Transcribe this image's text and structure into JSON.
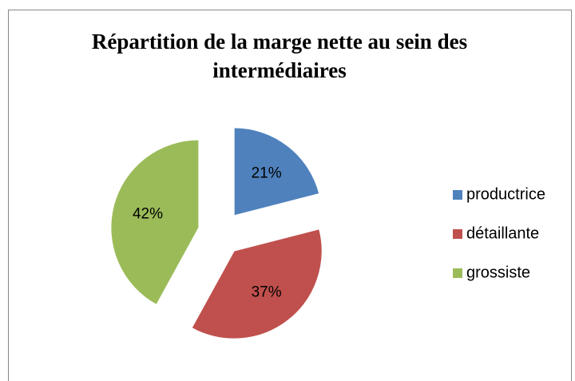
{
  "chart_data": {
    "type": "pie",
    "title": "Répartition de la marge nette au sein des intermédiaires",
    "categories": [
      "productrice",
      "détaillante",
      "grossiste"
    ],
    "values": [
      21,
      37,
      42
    ],
    "value_labels": [
      "21%",
      "37%",
      "42%"
    ],
    "colors": [
      "#4f81bd",
      "#c0504d",
      "#9bbb59"
    ],
    "legend": "right"
  }
}
